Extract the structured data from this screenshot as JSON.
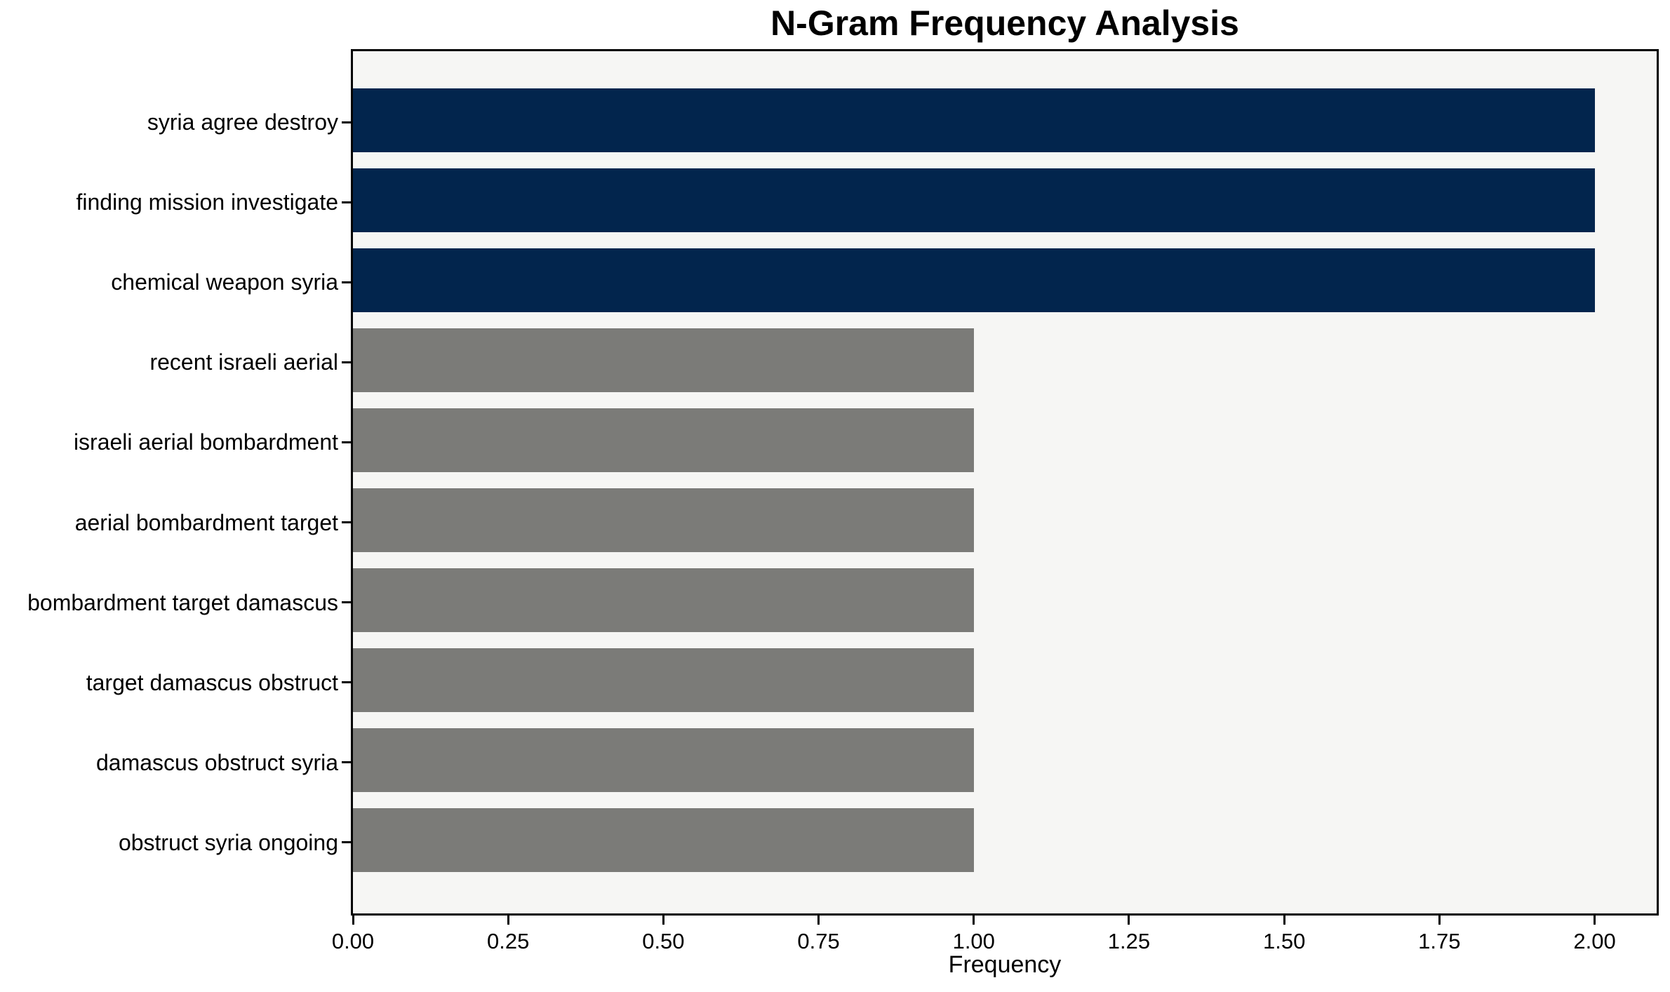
{
  "chart_data": {
    "type": "bar",
    "orientation": "horizontal",
    "title": "N-Gram Frequency Analysis",
    "xlabel": "Frequency",
    "ylabel": "",
    "categories": [
      "syria agree destroy",
      "finding mission investigate",
      "chemical weapon syria",
      "recent israeli aerial",
      "israeli aerial bombardment",
      "aerial bombardment target",
      "bombardment target damascus",
      "target damascus obstruct",
      "damascus obstruct syria",
      "obstruct syria ongoing"
    ],
    "values": [
      2,
      2,
      2,
      1,
      1,
      1,
      1,
      1,
      1,
      1
    ],
    "bar_colors": [
      "#02254d",
      "#02254d",
      "#02254d",
      "#7b7b78",
      "#7b7b78",
      "#7b7b78",
      "#7b7b78",
      "#7b7b78",
      "#7b7b78",
      "#7b7b78"
    ],
    "x_ticks": [
      0,
      0.25,
      0.5,
      0.75,
      1.0,
      1.25,
      1.5,
      1.75,
      2.0
    ],
    "x_tick_labels": [
      "0.00",
      "0.25",
      "0.50",
      "0.75",
      "1.00",
      "1.25",
      "1.50",
      "1.75",
      "2.00"
    ],
    "xlim": [
      0,
      2.1
    ],
    "ylim": [
      -0.89,
      9.89
    ],
    "bar_thickness_units": 0.8,
    "grid": false,
    "legend": "none",
    "colors": {
      "highlight_navy": "#02254d",
      "base_gray": "#7b7b78",
      "plot_background": "#f6f6f4",
      "figure_background": "#ffffff",
      "spine": "#000000",
      "text": "#000000"
    }
  }
}
